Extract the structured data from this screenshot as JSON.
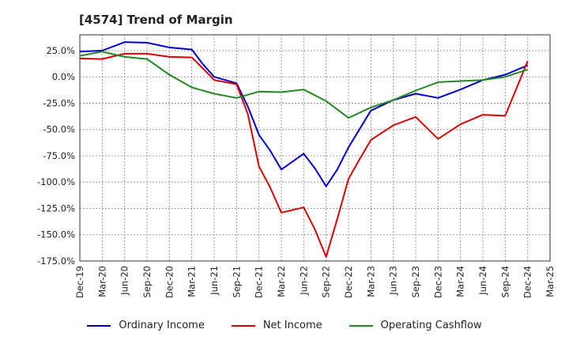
{
  "title": "[4574]  Trend of Margin",
  "chart_data": {
    "type": "line",
    "title": "[4574]  Trend of Margin",
    "categories": [
      "Dec-19",
      "Mar-20",
      "Jun-20",
      "Sep-20",
      "Dec-20",
      "Mar-21",
      "Jun-21",
      "Sep-21",
      "Dec-21",
      "Mar-22",
      "Jun-22",
      "Sep-22",
      "Dec-22",
      "Mar-23",
      "Jun-23",
      "Sep-23",
      "Dec-23",
      "Mar-24",
      "Jun-24",
      "Sep-24",
      "Dec-24",
      "Mar-25"
    ],
    "y_tick_labels": [
      "25.0%",
      "0.0%",
      "-25.0%",
      "-50.0%",
      "-75.0%",
      "-100.0%",
      "-125.0%",
      "-150.0%",
      "-175.0%"
    ],
    "y_ticks": [
      25,
      0,
      -25,
      -50,
      -75,
      -100,
      -125,
      -150,
      -175
    ],
    "ylim": [
      -175,
      40
    ],
    "grid": true,
    "legend_position": "bottom",
    "series": [
      {
        "name": "Ordinary Income",
        "color": "#0000cc",
        "points": [
          [
            0,
            24
          ],
          [
            0.5,
            24.5
          ],
          [
            1,
            25
          ],
          [
            2,
            33
          ],
          [
            3,
            32.5
          ],
          [
            4,
            28
          ],
          [
            5,
            26
          ],
          [
            5.5,
            12
          ],
          [
            6,
            0
          ],
          [
            7,
            -6
          ],
          [
            7.5,
            -28
          ],
          [
            8,
            -55
          ],
          [
            8.5,
            -70
          ],
          [
            9,
            -88
          ],
          [
            10,
            -73
          ],
          [
            10.5,
            -87
          ],
          [
            11,
            -104
          ],
          [
            11.5,
            -88
          ],
          [
            12,
            -67
          ],
          [
            13,
            -32
          ],
          [
            14,
            -22
          ],
          [
            15,
            -16
          ],
          [
            16,
            -20
          ],
          [
            17,
            -12
          ],
          [
            18,
            -3
          ],
          [
            19,
            2
          ],
          [
            20,
            11
          ]
        ]
      },
      {
        "name": "Net Income",
        "color": "#dd0000",
        "points": [
          [
            0,
            17.5
          ],
          [
            1,
            17
          ],
          [
            2,
            22
          ],
          [
            3,
            22
          ],
          [
            4,
            19
          ],
          [
            5,
            18.5
          ],
          [
            5.5,
            8
          ],
          [
            6,
            -3
          ],
          [
            7,
            -7
          ],
          [
            7.5,
            -35
          ],
          [
            8,
            -85
          ],
          [
            8.5,
            -105
          ],
          [
            9,
            -129
          ],
          [
            10,
            -124
          ],
          [
            10.5,
            -145
          ],
          [
            11,
            -171
          ],
          [
            11.5,
            -135
          ],
          [
            12,
            -97
          ],
          [
            12.5,
            -78
          ],
          [
            13,
            -60
          ],
          [
            14,
            -46
          ],
          [
            15,
            -38
          ],
          [
            16,
            -59
          ],
          [
            17,
            -45
          ],
          [
            18,
            -36
          ],
          [
            19,
            -37
          ],
          [
            20,
            15
          ]
        ]
      },
      {
        "name": "Operating Cashflow",
        "color": "#228822",
        "points": [
          [
            0,
            20
          ],
          [
            1,
            24
          ],
          [
            2,
            19
          ],
          [
            3,
            17
          ],
          [
            4,
            2
          ],
          [
            5,
            -10
          ],
          [
            6,
            -16
          ],
          [
            7,
            -20
          ],
          [
            8,
            -14
          ],
          [
            9,
            -14.5
          ],
          [
            10,
            -12
          ],
          [
            11,
            -23
          ],
          [
            12,
            -39
          ],
          [
            13,
            -29
          ],
          [
            14,
            -22
          ],
          [
            15,
            -13
          ],
          [
            16,
            -5
          ],
          [
            17,
            -4
          ],
          [
            18,
            -3
          ],
          [
            19,
            0
          ],
          [
            20,
            7
          ]
        ]
      }
    ]
  }
}
